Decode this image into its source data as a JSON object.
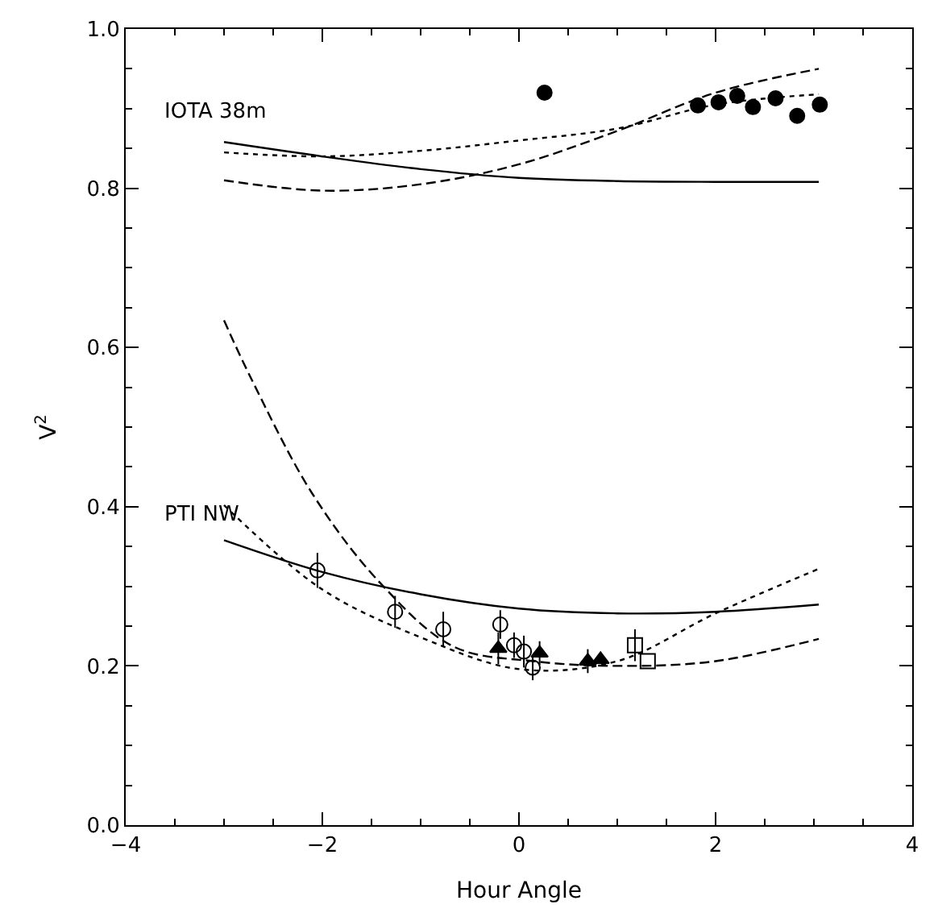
{
  "chart_data": {
    "type": "line",
    "xlabel": "Hour Angle",
    "ylabel": "V$^{2}$",
    "xlim": [
      -4,
      4
    ],
    "ylim": [
      0,
      1
    ],
    "xticks": [
      {
        "value": -4,
        "label": "−4"
      },
      {
        "value": -2,
        "label": "−2"
      },
      0,
      2,
      4
    ],
    "yticks": [
      {
        "value": 0,
        "label": "0.0"
      },
      {
        "value": 0.2,
        "label": "0.2"
      },
      {
        "value": 0.4,
        "label": "0.4"
      },
      {
        "value": 0.6,
        "label": "0.6"
      },
      {
        "value": 0.8,
        "label": "0.8"
      },
      {
        "value": 1,
        "label": "1.0"
      }
    ],
    "annotations": [
      "IOTA 38m",
      "PTI NW"
    ],
    "series": [
      {
        "color": "#000000",
        "line_style": "solid",
        "marker": "none",
        "x": [
          -3,
          -2,
          -1,
          0,
          1,
          2,
          3.05
        ],
        "values": [
          0.858,
          0.84,
          0.824,
          0.813,
          0.809,
          0.808,
          0.808
        ]
      },
      {
        "color": "#000000",
        "line_style": "dotted",
        "marker": "none",
        "x": [
          -3,
          -2,
          -1,
          0,
          1,
          2,
          3.05
        ],
        "values": [
          0.845,
          0.84,
          0.847,
          0.86,
          0.875,
          0.905,
          0.918
        ]
      },
      {
        "color": "#000000",
        "line_style": "dashed",
        "marker": "none",
        "x": [
          -3,
          -2,
          -1,
          0,
          1,
          2,
          3.05
        ],
        "values": [
          0.81,
          0.797,
          0.805,
          0.83,
          0.872,
          0.92,
          0.95
        ]
      },
      {
        "color": "#000000",
        "line_style": "solid",
        "marker": "none",
        "x": [
          -3,
          -2,
          -1,
          0,
          1,
          2,
          3.05
        ],
        "values": [
          0.358,
          0.318,
          0.29,
          0.272,
          0.266,
          0.268,
          0.277
        ]
      },
      {
        "color": "#000000",
        "line_style": "dotted",
        "marker": "none",
        "x": [
          -3,
          -2,
          -1,
          0,
          1,
          2,
          3.05
        ],
        "values": [
          0.402,
          0.296,
          0.236,
          0.196,
          0.206,
          0.266,
          0.322
        ]
      },
      {
        "color": "#000000",
        "line_style": "dashed",
        "marker": "none",
        "x": [
          -3,
          -2.72,
          -2.1,
          -1.41,
          -0.66,
          0.14,
          1,
          2,
          3.05
        ],
        "values": [
          0.634,
          0.56,
          0.416,
          0.304,
          0.224,
          0.206,
          0.2,
          0.206,
          0.234
        ]
      },
      {
        "type": "scatter",
        "color": "#000000",
        "marker": "circle",
        "x": [
          0.26,
          1.82,
          2.03,
          2.22,
          2.38,
          2.61,
          2.83,
          3.06
        ],
        "values": [
          0.92,
          0.904,
          0.908,
          0.916,
          0.902,
          0.913,
          0.891,
          0.905
        ],
        "errors": [
          0.008,
          0.008,
          0.008,
          0.008,
          0.008,
          0.008,
          0.008,
          0.008
        ]
      },
      {
        "type": "scatter",
        "color": "#000000",
        "marker": "circle-open",
        "x": [
          -2.05,
          -1.26,
          -0.77,
          -0.19,
          -0.05,
          0.05,
          0.14
        ],
        "values": [
          0.32,
          0.268,
          0.246,
          0.252,
          0.226,
          0.218,
          0.198
        ],
        "errors": [
          0.022,
          0.02,
          0.022,
          0.018,
          0.016,
          0.02,
          0.016
        ]
      },
      {
        "type": "scatter",
        "color": "#000000",
        "marker": "triangle",
        "x": [
          -0.21,
          0.21,
          0.7,
          0.83
        ],
        "values": [
          0.222,
          0.216,
          0.206,
          0.208
        ],
        "errors": [
          0.02,
          0.015,
          0.015,
          null
        ]
      },
      {
        "type": "scatter",
        "color": "#000000",
        "marker": "square-open",
        "x": [
          1.18,
          1.31
        ],
        "values": [
          0.226,
          0.206
        ],
        "errors": [
          0.02,
          null
        ]
      }
    ]
  }
}
